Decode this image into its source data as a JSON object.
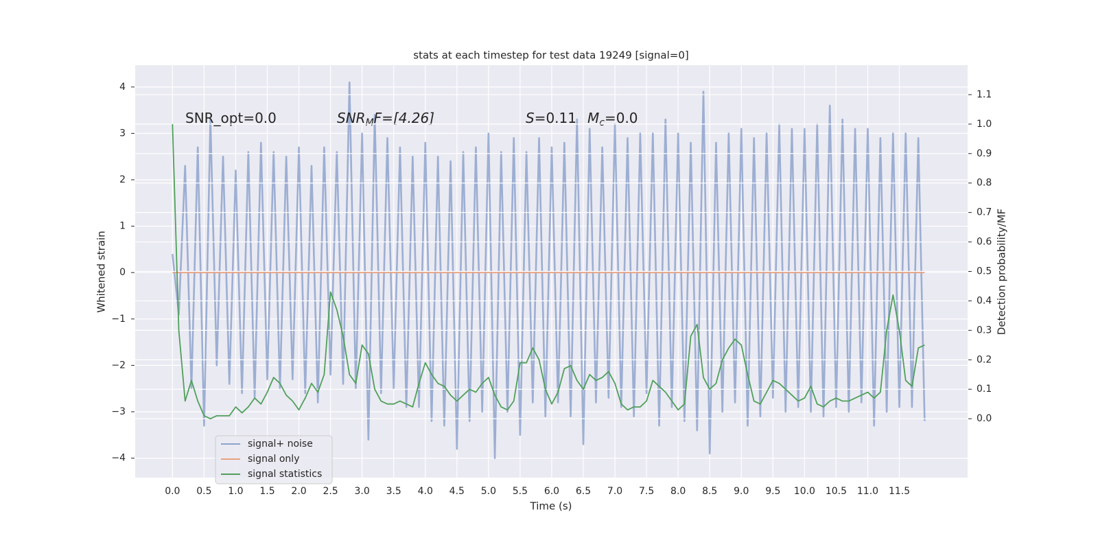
{
  "chart_data": {
    "type": "line",
    "title": "stats at each timestep for test data 19249 [signal=0]",
    "xlabel": "Time (s)",
    "ylabel": "Whitened strain",
    "y2label": "Detection probability/MF",
    "annotations": [
      [
        "SNR_opt=0.0"
      ],
      [
        "SNR",
        "M",
        "F=[4.26]"
      ],
      [
        "S",
        "=0.11",
        "M",
        "c",
        "=0.0"
      ]
    ],
    "x": [
      0,
      0.1,
      0.2,
      0.3,
      0.4,
      0.5,
      0.6,
      0.7,
      0.8,
      0.9,
      1,
      1.1,
      1.2,
      1.3,
      1.4,
      1.5,
      1.6,
      1.7,
      1.8,
      1.9,
      2,
      2.1,
      2.2,
      2.3,
      2.4,
      2.5,
      2.6,
      2.7,
      2.8,
      2.9,
      3,
      3.1,
      3.2,
      3.3,
      3.4,
      3.5,
      3.6,
      3.7,
      3.8,
      3.9,
      4,
      4.1,
      4.2,
      4.3,
      4.4,
      4.5,
      4.6,
      4.7,
      4.8,
      4.9,
      5,
      5.1,
      5.2,
      5.3,
      5.4,
      5.5,
      5.6,
      5.7,
      5.8,
      5.9,
      6,
      6.1,
      6.2,
      6.3,
      6.4,
      6.5,
      6.6,
      6.7,
      6.8,
      6.9,
      7,
      7.1,
      7.2,
      7.3,
      7.4,
      7.5,
      7.6,
      7.7,
      7.8,
      7.9,
      8,
      8.1,
      8.2,
      8.3,
      8.4,
      8.5,
      8.6,
      8.7,
      8.8,
      8.9,
      9,
      9.1,
      9.2,
      9.3,
      9.4,
      9.5,
      9.6,
      9.7,
      9.8,
      9.9,
      10,
      10.1,
      10.2,
      10.3,
      10.4,
      10.5,
      10.6,
      10.7,
      10.8,
      10.9,
      11,
      11.1,
      11.2,
      11.3,
      11.4,
      11.5,
      11.6,
      11.7,
      11.8,
      11.9
    ],
    "series": [
      {
        "name": "signal+ noise",
        "color": "#8ea3cc",
        "values": [
          0.4,
          -0.9,
          2.3,
          -2.5,
          2.7,
          -3.3,
          3.3,
          -2.0,
          2.5,
          -2.4,
          2.2,
          -2.6,
          2.6,
          -2.7,
          2.8,
          -2.3,
          2.6,
          -2.5,
          2.5,
          -2.3,
          2.7,
          -2.6,
          2.3,
          -2.8,
          2.7,
          -2.2,
          2.6,
          -2.4,
          4.1,
          -2.5,
          3.0,
          -3.6,
          3.4,
          -2.6,
          2.9,
          -2.5,
          2.7,
          -2.9,
          2.5,
          -2.9,
          2.8,
          -3.2,
          2.5,
          -3.3,
          2.4,
          -3.8,
          2.6,
          -3.2,
          2.7,
          -3.0,
          3.0,
          -4.0,
          2.6,
          -3.0,
          2.9,
          -3.5,
          2.6,
          -2.8,
          2.9,
          -3.1,
          2.7,
          -2.8,
          2.8,
          -3.1,
          3.3,
          -3.7,
          3.1,
          -2.8,
          2.7,
          -2.7,
          3.2,
          -2.9,
          2.9,
          -3.1,
          3.0,
          -2.6,
          3.0,
          -3.3,
          3.3,
          -2.9,
          3.0,
          -3.2,
          2.8,
          -3.4,
          3.9,
          -3.9,
          2.8,
          -3.0,
          3.0,
          -2.8,
          3.1,
          -3.3,
          2.9,
          -3.1,
          3.0,
          -2.7,
          3.2,
          -3.0,
          3.1,
          -2.9,
          3.1,
          -3.0,
          3.2,
          -3.1,
          3.6,
          -2.9,
          3.3,
          -3.0,
          3.1,
          -2.8,
          3.1,
          -3.3,
          2.9,
          -3.0,
          3.0,
          -2.9,
          3.0,
          -2.9,
          2.9,
          -3.2
        ]
      },
      {
        "name": "signal only",
        "color": "#e8a07f",
        "x": [
          0,
          11.9
        ],
        "values": [
          0,
          0
        ]
      },
      {
        "name": "signal statistics",
        "color": "#4fa05a",
        "axis": "y2",
        "values": [
          1.0,
          0.3,
          0.06,
          0.13,
          0.06,
          0.01,
          0.0,
          0.01,
          0.01,
          0.01,
          0.04,
          0.02,
          0.04,
          0.07,
          0.05,
          0.09,
          0.14,
          0.12,
          0.08,
          0.06,
          0.03,
          0.07,
          0.12,
          0.09,
          0.15,
          0.43,
          0.37,
          0.28,
          0.15,
          0.12,
          0.25,
          0.22,
          0.1,
          0.06,
          0.05,
          0.05,
          0.06,
          0.05,
          0.04,
          0.12,
          0.19,
          0.15,
          0.12,
          0.11,
          0.08,
          0.06,
          0.08,
          0.1,
          0.09,
          0.12,
          0.14,
          0.08,
          0.04,
          0.03,
          0.06,
          0.19,
          0.19,
          0.24,
          0.2,
          0.1,
          0.05,
          0.09,
          0.17,
          0.18,
          0.13,
          0.1,
          0.15,
          0.13,
          0.14,
          0.16,
          0.12,
          0.05,
          0.03,
          0.04,
          0.04,
          0.06,
          0.13,
          0.11,
          0.09,
          0.06,
          0.03,
          0.05,
          0.28,
          0.32,
          0.14,
          0.1,
          0.12,
          0.2,
          0.24,
          0.27,
          0.25,
          0.15,
          0.06,
          0.05,
          0.09,
          0.13,
          0.12,
          0.1,
          0.08,
          0.06,
          0.07,
          0.11,
          0.05,
          0.04,
          0.06,
          0.07,
          0.06,
          0.06,
          0.07,
          0.08,
          0.09,
          0.07,
          0.09,
          0.3,
          0.42,
          0.3,
          0.13,
          0.11,
          0.24,
          0.25
        ]
      }
    ],
    "xlim": [
      -0.59,
      12.58
    ],
    "xticks": [
      {
        "value": 0,
        "label": "0.0"
      },
      0.5,
      {
        "value": 1,
        "label": "1.0"
      },
      1.5,
      {
        "value": 2,
        "label": "2.0"
      },
      2.5,
      {
        "value": 3,
        "label": "3.0"
      },
      3.5,
      {
        "value": 4,
        "label": "4.0"
      },
      4.5,
      {
        "value": 5,
        "label": "5.0"
      },
      5.5,
      {
        "value": 6,
        "label": "6.0"
      },
      6.5,
      {
        "value": 7,
        "label": "7.0"
      },
      7.5,
      {
        "value": 8,
        "label": "8.0"
      },
      8.5,
      {
        "value": 9,
        "label": "9.0"
      },
      9.5,
      {
        "value": 10,
        "label": "10.0"
      },
      10.5,
      {
        "value": 11,
        "label": "11.0"
      },
      11.5
    ],
    "ylim": [
      -4.42,
      4.47
    ],
    "yticks": [
      {
        "value": -4,
        "label": "−4"
      },
      {
        "value": -3,
        "label": "−3"
      },
      {
        "value": -2,
        "label": "−2"
      },
      {
        "value": -1,
        "label": "−1"
      },
      0,
      1,
      2,
      3,
      4
    ],
    "y2lim": [
      -0.2,
      1.2
    ],
    "y2ticks": [
      {
        "value": 0,
        "label": "0.0"
      },
      0.1,
      0.2,
      0.3,
      0.4,
      0.5,
      0.6,
      0.7,
      0.8,
      0.9,
      {
        "value": 1,
        "label": "1.0"
      },
      1.1
    ],
    "grid": true,
    "legend": "lower left",
    "background": "#eaeaf2"
  }
}
